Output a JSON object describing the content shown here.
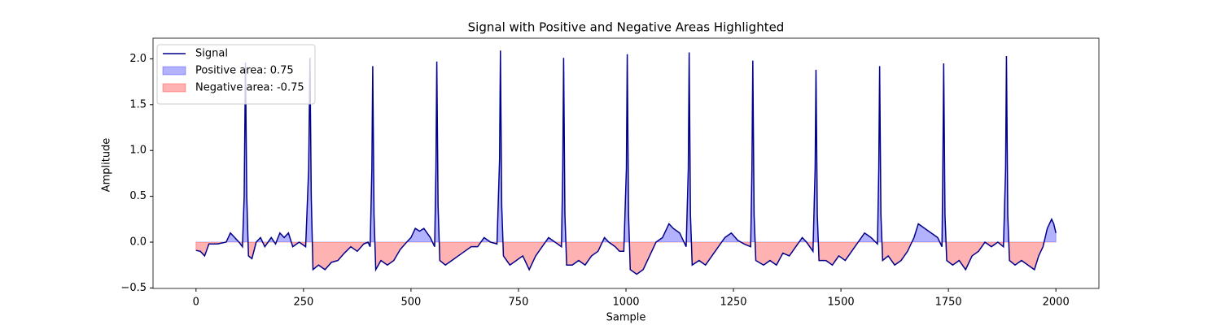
{
  "chart_data": {
    "type": "line",
    "title": "Signal with Positive and Negative Areas Highlighted",
    "xlabel": "Sample",
    "ylabel": "Amplitude",
    "xlim": [
      -100,
      2100
    ],
    "ylim": [
      -0.505,
      2.225
    ],
    "xticks": [
      0,
      250,
      500,
      750,
      1000,
      1250,
      1500,
      1750,
      2000
    ],
    "yticks": [
      {
        "value": -0.5,
        "label": "−0.5"
      },
      {
        "value": 0,
        "label": "0.0"
      },
      0.5,
      {
        "value": 1,
        "label": "1.0"
      },
      1.5,
      {
        "value": 2,
        "label": "2.0"
      }
    ],
    "legend": "upper left",
    "series": [
      {
        "name": "Signal",
        "color": "#00008b",
        "x": [
          0,
          10,
          20,
          30,
          50,
          70,
          80,
          90,
          100,
          108,
          112,
          115,
          118,
          122,
          130,
          140,
          150,
          160,
          175,
          185,
          195,
          205,
          215,
          225,
          240,
          255,
          262,
          265,
          268,
          272,
          285,
          300,
          315,
          330,
          345,
          360,
          375,
          390,
          400,
          405,
          409,
          411,
          414,
          418,
          430,
          445,
          460,
          475,
          490,
          500,
          510,
          520,
          530,
          545,
          555,
          558,
          560,
          563,
          567,
          580,
          595,
          610,
          625,
          640,
          655,
          670,
          685,
          700,
          706,
          708,
          711,
          715,
          730,
          745,
          760,
          775,
          790,
          805,
          820,
          835,
          850,
          853,
          855,
          858,
          862,
          875,
          890,
          905,
          920,
          935,
          950,
          960,
          975,
          985,
          995,
          1001,
          1003,
          1006,
          1010,
          1025,
          1040,
          1055,
          1070,
          1085,
          1100,
          1110,
          1125,
          1140,
          1145,
          1147,
          1150,
          1154,
          1170,
          1185,
          1200,
          1215,
          1230,
          1245,
          1260,
          1275,
          1290,
          1293,
          1295,
          1298,
          1302,
          1320,
          1335,
          1350,
          1365,
          1380,
          1395,
          1410,
          1420,
          1435,
          1440,
          1442,
          1445,
          1449,
          1465,
          1480,
          1495,
          1510,
          1525,
          1540,
          1555,
          1570,
          1585,
          1588,
          1590,
          1593,
          1597,
          1610,
          1625,
          1640,
          1655,
          1670,
          1680,
          1695,
          1710,
          1725,
          1735,
          1737,
          1739,
          1742,
          1746,
          1760,
          1775,
          1790,
          1805,
          1820,
          1835,
          1850,
          1865,
          1878,
          1883,
          1885,
          1888,
          1892,
          1905,
          1920,
          1935,
          1950,
          1960,
          1970,
          1980,
          1990,
          1995,
          2000
        ],
        "values": [
          -0.09,
          -0.1,
          -0.15,
          -0.02,
          -0.02,
          0.0,
          0.1,
          0.05,
          0.0,
          -0.05,
          0.5,
          1.96,
          0.5,
          -0.15,
          -0.18,
          0.0,
          0.05,
          -0.05,
          0.05,
          -0.02,
          0.1,
          0.05,
          0.1,
          -0.05,
          0.0,
          -0.05,
          0.8,
          2.01,
          0.5,
          -0.3,
          -0.25,
          -0.3,
          -0.22,
          -0.2,
          -0.12,
          -0.05,
          -0.1,
          -0.02,
          0.0,
          -0.05,
          0.8,
          1.92,
          0.3,
          -0.3,
          -0.2,
          -0.25,
          -0.2,
          -0.08,
          0.0,
          0.05,
          0.15,
          0.12,
          0.15,
          0.05,
          -0.05,
          0.8,
          1.97,
          0.4,
          -0.2,
          -0.25,
          -0.2,
          -0.15,
          -0.1,
          -0.05,
          -0.05,
          0.05,
          0.0,
          -0.02,
          0.9,
          2.09,
          0.4,
          -0.15,
          -0.25,
          -0.2,
          -0.15,
          -0.3,
          -0.15,
          -0.05,
          0.05,
          0.0,
          -0.05,
          0.8,
          2.01,
          0.3,
          -0.25,
          -0.25,
          -0.2,
          -0.25,
          -0.15,
          -0.1,
          0.05,
          0.0,
          -0.05,
          -0.1,
          -0.1,
          0.8,
          2.05,
          0.3,
          -0.3,
          -0.35,
          -0.3,
          -0.15,
          0.0,
          0.05,
          0.2,
          0.15,
          0.1,
          -0.05,
          0.8,
          2.07,
          0.3,
          -0.25,
          -0.2,
          -0.25,
          -0.15,
          -0.05,
          0.05,
          0.1,
          0.02,
          -0.02,
          -0.05,
          0.8,
          1.98,
          0.3,
          -0.2,
          -0.25,
          -0.2,
          -0.25,
          -0.12,
          -0.15,
          -0.05,
          0.05,
          0.0,
          -0.1,
          0.8,
          1.88,
          0.3,
          -0.2,
          -0.2,
          -0.25,
          -0.15,
          -0.2,
          -0.1,
          0.0,
          0.1,
          0.05,
          -0.02,
          0.8,
          1.92,
          0.3,
          -0.2,
          -0.15,
          -0.25,
          -0.2,
          -0.1,
          0.05,
          0.2,
          0.15,
          0.1,
          0.05,
          -0.05,
          0.8,
          1.95,
          0.3,
          -0.2,
          -0.25,
          -0.2,
          -0.3,
          -0.15,
          -0.1,
          0.0,
          -0.05,
          0.0,
          -0.05,
          0.8,
          2.03,
          0.3,
          -0.2,
          -0.25,
          -0.2,
          -0.25,
          -0.3,
          -0.15,
          -0.05,
          0.15,
          0.25,
          0.2,
          0.1
        ]
      }
    ],
    "areas": [
      {
        "name": "Positive area: 0.75",
        "color": "#0000ff",
        "side": "positive"
      },
      {
        "name": "Negative area: -0.75",
        "color": "#ff0000",
        "side": "negative"
      }
    ]
  }
}
